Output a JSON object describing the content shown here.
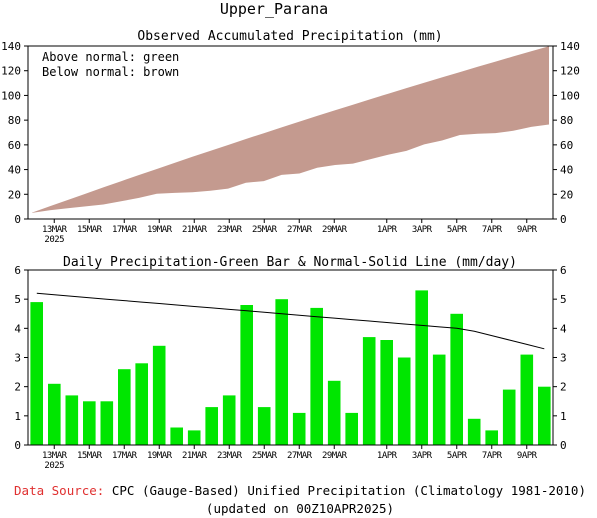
{
  "page_title": "Upper_Parana",
  "footer": {
    "source_label": "Data Source:",
    "source_text": "CPC (Gauge-Based) Unified Precipitation (Climatology 1981-2010)",
    "updated": "(updated on 00Z10APR2025)",
    "source_label_color": "#e03030"
  },
  "chart_data": [
    {
      "type": "area",
      "title": "Observed Accumulated Precipitation (mm)",
      "ylim": [
        0,
        140
      ],
      "yticks": [
        0,
        20,
        40,
        60,
        80,
        100,
        120,
        140
      ],
      "legend_lines": [
        "Above normal: green",
        "Below normal: brown"
      ],
      "x_tick_labels": [
        "13MAR",
        "15MAR",
        "17MAR",
        "19MAR",
        "21MAR",
        "23MAR",
        "25MAR",
        "27MAR",
        "29MAR",
        "1APR",
        "3APR",
        "5APR",
        "7APR",
        "9APR"
      ],
      "x_year_label": "2025",
      "fill_color": "#c49a8f",
      "days": [
        "12MAR",
        "13MAR",
        "14MAR",
        "15MAR",
        "16MAR",
        "17MAR",
        "18MAR",
        "19MAR",
        "20MAR",
        "21MAR",
        "22MAR",
        "23MAR",
        "24MAR",
        "25MAR",
        "26MAR",
        "27MAR",
        "28MAR",
        "29MAR",
        "30MAR",
        "31MAR",
        "1APR",
        "2APR",
        "3APR",
        "4APR",
        "5APR",
        "6APR",
        "7APR",
        "8APR",
        "9APR",
        "10APR"
      ],
      "series": [
        {
          "name": "Observed",
          "values": [
            4.9,
            7.0,
            8.7,
            10.2,
            11.7,
            14.3,
            17.1,
            20.5,
            21.1,
            21.6,
            22.9,
            24.6,
            29.4,
            30.7,
            35.7,
            36.8,
            41.5,
            43.7,
            44.8,
            48.5,
            52.1,
            55.1,
            60.4,
            63.5,
            68.0,
            69.0,
            69.5,
            71.4,
            74.5,
            76.5
          ]
        },
        {
          "name": "Normal",
          "values": [
            5.2,
            10.3,
            15.4,
            20.5,
            25.6,
            30.6,
            35.6,
            40.5,
            45.4,
            50.3,
            55.1,
            59.9,
            64.7,
            69.4,
            74.1,
            78.8,
            83.4,
            88.0,
            92.5,
            97.0,
            101.5,
            105.9,
            110.3,
            114.6,
            118.9,
            123.2,
            127.4,
            131.6,
            135.7,
            139.8
          ]
        }
      ]
    },
    {
      "type": "bar",
      "title": "Daily Precipitation-Green Bar & Normal-Solid Line (mm/day)",
      "ylim": [
        0,
        6
      ],
      "yticks": [
        0,
        1,
        2,
        3,
        4,
        5,
        6
      ],
      "x_tick_labels": [
        "13MAR",
        "15MAR",
        "17MAR",
        "19MAR",
        "21MAR",
        "23MAR",
        "25MAR",
        "27MAR",
        "29MAR",
        "1APR",
        "3APR",
        "5APR",
        "7APR",
        "9APR"
      ],
      "x_year_label": "2025",
      "bar_color": "#00e600",
      "days": [
        "12MAR",
        "13MAR",
        "14MAR",
        "15MAR",
        "16MAR",
        "17MAR",
        "18MAR",
        "19MAR",
        "20MAR",
        "21MAR",
        "22MAR",
        "23MAR",
        "24MAR",
        "25MAR",
        "26MAR",
        "27MAR",
        "28MAR",
        "29MAR",
        "30MAR",
        "31MAR",
        "1APR",
        "2APR",
        "3APR",
        "4APR",
        "5APR",
        "6APR",
        "7APR",
        "8APR",
        "9APR",
        "10APR"
      ],
      "series": [
        {
          "name": "Daily",
          "values": [
            4.9,
            2.1,
            1.7,
            1.5,
            1.5,
            2.6,
            2.8,
            3.4,
            0.6,
            0.5,
            1.3,
            1.7,
            4.8,
            1.3,
            5.0,
            1.1,
            4.7,
            2.2,
            1.1,
            3.7,
            3.6,
            3.0,
            5.3,
            3.1,
            4.5,
            0.9,
            0.5,
            1.9,
            3.1,
            2.0
          ]
        },
        {
          "name": "Normal",
          "values": [
            5.2,
            5.15,
            5.1,
            5.05,
            5.0,
            4.95,
            4.9,
            4.85,
            4.8,
            4.75,
            4.7,
            4.65,
            4.6,
            4.55,
            4.5,
            4.45,
            4.4,
            4.35,
            4.3,
            4.25,
            4.2,
            4.15,
            4.1,
            4.05,
            4.0,
            3.9,
            3.75,
            3.6,
            3.45,
            3.3
          ]
        }
      ]
    }
  ]
}
